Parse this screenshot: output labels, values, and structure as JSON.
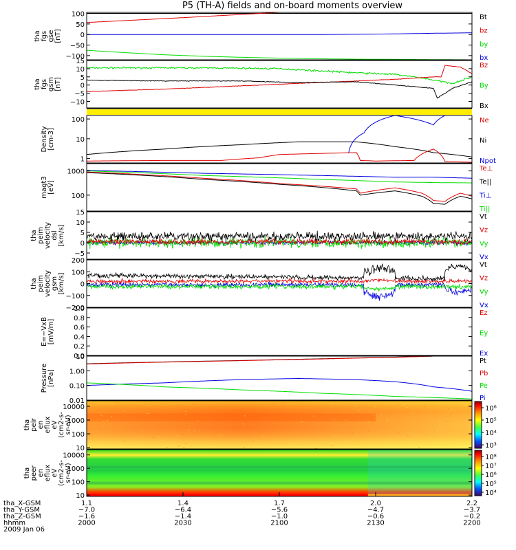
{
  "title": "P5 (TH-A) fields and on-board moments overview",
  "colors": {
    "black": "#000000",
    "red": "#e00000",
    "green": "#00dd00",
    "blue": "#0000dd",
    "yellow": "#ffee00"
  },
  "chart_data": [
    {
      "type": "line",
      "id": "fgs_gse",
      "ylabel": [
        "tha",
        "fgs",
        "gse",
        "[nT]"
      ],
      "ylim": [
        -120,
        105
      ],
      "yticks": [
        100,
        50,
        0,
        -50,
        -100
      ],
      "ticklabels": [
        "100",
        "50",
        "0",
        "−50",
        "−100"
      ],
      "series": [
        {
          "name": "Bt",
          "color": "red-dummy",
          "x": [
            0,
            0.05,
            1
          ],
          "y": [
            0,
            0,
            0
          ]
        }
      ]
    }
  ],
  "panels": [
    {
      "id": "fgs_gse",
      "type": "line",
      "ylabel": [
        "tha",
        "fgs",
        "gse",
        "[nT]"
      ],
      "ylim": [
        -120,
        105
      ],
      "ticks": [
        100,
        50,
        0,
        -50,
        -100
      ],
      "ticklabels": [
        "100",
        "50",
        "0",
        "−50",
        "−100"
      ],
      "legend": [
        {
          "t": "Bt",
          "c": "black"
        },
        {
          "t": "bz",
          "c": "red"
        },
        {
          "t": "by",
          "c": "green"
        },
        {
          "t": "bx",
          "c": "blue"
        }
      ],
      "series": [
        {
          "c": "black",
          "x": [
            0,
            1
          ],
          "y": [
            100,
            100
          ]
        },
        {
          "c": "red",
          "x": [
            0,
            0.12,
            0.25,
            0.4,
            0.5
          ],
          "y": [
            57,
            68,
            80,
            95,
            105
          ]
        },
        {
          "c": "green",
          "x": [
            0,
            0.1,
            0.2,
            0.3,
            0.4,
            0.5,
            0.6,
            0.7,
            0.8,
            0.9,
            1
          ],
          "y": [
            -75,
            -86,
            -96,
            -103,
            -108,
            -112,
            -115,
            -117,
            -118,
            -119,
            -120
          ]
        },
        {
          "c": "blue",
          "x": [
            0,
            0.2,
            0.4,
            0.6,
            0.7,
            0.8,
            0.9,
            1
          ],
          "y": [
            0,
            0,
            0,
            0,
            1,
            3,
            6,
            8
          ]
        }
      ]
    },
    {
      "id": "fgs_gsm",
      "type": "line",
      "ylabel": [
        "tha",
        "fgs",
        "gsm",
        "[nT]"
      ],
      "ylim": [
        -14,
        15
      ],
      "ticks": [
        15,
        10,
        5,
        0,
        -5,
        -10
      ],
      "ticklabels": [
        "15",
        "10",
        "5",
        "0",
        "−5",
        "−10"
      ],
      "legend": [
        {
          "t": "Bz",
          "c": "red"
        },
        {
          "t": "By",
          "c": "green"
        },
        {
          "t": "Bx",
          "c": "black"
        }
      ],
      "noisy": true,
      "series": [
        {
          "c": "green",
          "n": 0.8,
          "x": [
            0,
            0.3,
            0.5,
            0.7,
            0.8,
            0.88,
            0.9,
            0.95,
            1
          ],
          "y": [
            10.5,
            10.5,
            10,
            7.5,
            6.5,
            4,
            3,
            1,
            5
          ]
        },
        {
          "c": "red",
          "n": 0.2,
          "x": [
            0,
            0.2,
            0.5,
            0.8,
            0.9,
            0.92,
            0.93,
            0.97,
            1
          ],
          "y": [
            -4,
            -2.5,
            0.5,
            3.5,
            5,
            5,
            12,
            11,
            7
          ]
        },
        {
          "c": "black",
          "n": 0.3,
          "x": [
            0,
            0.2,
            0.4,
            0.55,
            0.7,
            0.8,
            0.9,
            0.91,
            0.95,
            1
          ],
          "y": [
            3,
            2.5,
            2.5,
            1.5,
            2,
            0,
            -2,
            -8,
            -2,
            2
          ]
        }
      ]
    },
    {
      "id": "flag",
      "type": "flag"
    },
    {
      "id": "density",
      "type": "line",
      "scale": "log",
      "ylabel": [
        "Density",
        "[cm-3]"
      ],
      "ylim": [
        0.6,
        150
      ],
      "ticks": [
        100,
        10,
        1
      ],
      "ticklabels": [
        "100",
        "10",
        "1"
      ],
      "legend": [
        {
          "t": "Ne",
          "c": "red"
        },
        {
          "t": "Ni",
          "c": "black"
        },
        {
          "t": "Npot",
          "c": "blue"
        }
      ],
      "series": [
        {
          "c": "black",
          "x": [
            0,
            0.2,
            0.4,
            0.55,
            0.7,
            0.8,
            0.9,
            1
          ],
          "y": [
            1.6,
            3,
            5,
            7,
            7,
            4,
            2,
            1.2
          ]
        },
        {
          "c": "red",
          "x": [
            0,
            0.2,
            0.35,
            0.45,
            0.5,
            0.7,
            0.71,
            0.75,
            0.85,
            0.9,
            0.93,
            1
          ],
          "y": [
            0.75,
            0.8,
            0.8,
            1.1,
            1.6,
            2,
            0.8,
            0.75,
            0.8,
            3,
            0.7,
            0.65
          ]
        },
        {
          "c": "blue",
          "x": [
            0.68,
            0.72,
            0.8,
            0.9,
            0.93
          ],
          "y": [
            2,
            20,
            150,
            50,
            150
          ]
        }
      ]
    },
    {
      "id": "temperature",
      "type": "line",
      "scale": "log",
      "ylabel": [
        "magt3",
        "[eV]"
      ],
      "ylim": [
        22,
        2000
      ],
      "ticks": [
        1000,
        100
      ],
      "ticklabels": [
        "1000",
        "100"
      ],
      "legend": [
        {
          "t": "Te⊥",
          "c": "red"
        },
        {
          "t": "Te||",
          "c": "black"
        },
        {
          "t": "Ti⊥",
          "c": "blue"
        },
        {
          "t": "Ti||",
          "c": "green"
        }
      ],
      "series": [
        {
          "c": "blue",
          "n": 0.03,
          "x": [
            0,
            0.3,
            0.6,
            0.8,
            0.9,
            1
          ],
          "y": [
            1050,
            800,
            650,
            550,
            550,
            500
          ]
        },
        {
          "c": "green",
          "n": 0.03,
          "x": [
            0,
            0.3,
            0.6,
            0.8,
            0.9,
            1
          ],
          "y": [
            1000,
            650,
            450,
            350,
            330,
            320
          ]
        },
        {
          "c": "red",
          "x": [
            0,
            0.3,
            0.5,
            0.7,
            0.71,
            0.8,
            0.87,
            0.9,
            0.93,
            0.97,
            1
          ],
          "y": [
            900,
            500,
            300,
            180,
            120,
            200,
            120,
            60,
            55,
            120,
            90
          ]
        },
        {
          "c": "black",
          "x": [
            0,
            0.3,
            0.5,
            0.7,
            0.71,
            0.8,
            0.87,
            0.9,
            0.93,
            0.97,
            1
          ],
          "y": [
            850,
            450,
            280,
            150,
            100,
            150,
            90,
            45,
            42,
            90,
            70
          ]
        }
      ]
    },
    {
      "id": "peim_velocity_dsl",
      "type": "noise",
      "ylabel": [
        "tha",
        "peim",
        "velocity",
        "dsl",
        "[km/s]"
      ],
      "ylim": [
        -8,
        15
      ],
      "ticks": [
        15,
        10,
        5,
        0,
        -5
      ],
      "ticklabels": [
        "15",
        "10",
        "5",
        "0",
        "−5"
      ],
      "legend": [
        {
          "t": "Vt",
          "c": "black"
        },
        {
          "t": "Vz",
          "c": "red"
        },
        {
          "t": "Vy",
          "c": "green"
        },
        {
          "t": "Vx",
          "c": "blue"
        }
      ],
      "series": [
        {
          "c": "blue",
          "base": 0,
          "amp": 1.5
        },
        {
          "c": "green",
          "base": 0,
          "amp": 3.5
        },
        {
          "c": "red",
          "base": 0.5,
          "amp": 2
        },
        {
          "c": "black",
          "base": 3,
          "amp": 3
        }
      ]
    },
    {
      "id": "peim_velocity_gsm",
      "type": "noise",
      "ylabel": [
        "tha",
        "peim",
        "velocity",
        "gsm",
        "[km/s]"
      ],
      "ylim": [
        -200,
        200
      ],
      "ticks": [
        200,
        100,
        0,
        -100,
        -200
      ],
      "ticklabels": [
        "200",
        "100",
        "0",
        "−100",
        "−200"
      ],
      "legend": [
        {
          "t": "Vt",
          "c": "black"
        },
        {
          "t": "Vz",
          "c": "red"
        },
        {
          "t": "Vy",
          "c": "green"
        },
        {
          "t": "Vx",
          "c": "blue"
        }
      ],
      "series": [
        {
          "c": "blue",
          "base": -10,
          "amp": 30,
          "burst": [
            0.72,
            0.8,
            -100,
            60
          ],
          "burst2": [
            0.93,
            1,
            -60,
            40
          ]
        },
        {
          "c": "green",
          "base": -25,
          "amp": 30,
          "burst": [
            0.72,
            0.8,
            -20,
            20
          ]
        },
        {
          "c": "red",
          "base": 20,
          "amp": 25,
          "burst": [
            0.72,
            0.8,
            10,
            20
          ]
        },
        {
          "c": "black",
          "base": 70,
          "amp": 30,
          "trend": -30,
          "burst": [
            0.72,
            0.8,
            60,
            60
          ],
          "burst2": [
            0.93,
            1,
            80,
            40
          ]
        }
      ]
    },
    {
      "id": "efield",
      "type": "empty",
      "ylabel": [
        "E=−VxB",
        "[mV/m]"
      ],
      "ylim": [
        0,
        1
      ],
      "ticks": [
        1.0,
        0.8,
        0.6,
        0.4,
        0.2,
        0.0
      ],
      "ticklabels": [
        "1.0",
        "0.8",
        "0.6",
        "0.4",
        "0.2",
        "0.0"
      ],
      "legend": [
        {
          "t": "Ez",
          "c": "red"
        },
        {
          "t": "Ey",
          "c": "green"
        },
        {
          "t": "Ex",
          "c": "blue"
        }
      ]
    },
    {
      "id": "pressure",
      "type": "line",
      "scale": "log",
      "ylabel": [
        "Pressure",
        "[nPa]"
      ],
      "ylim": [
        0.01,
        10
      ],
      "ticks": [
        10,
        1,
        0.1,
        0.01
      ],
      "ticklabels": [
        "10",
        "1.00",
        "0.10",
        "0.01"
      ],
      "legend": [
        {
          "t": "Pt",
          "c": "black"
        },
        {
          "t": "Pb",
          "c": "red"
        },
        {
          "t": "Pe",
          "c": "green"
        },
        {
          "t": "Pi",
          "c": "blue"
        }
      ],
      "series": [
        {
          "c": "black",
          "x": [
            0,
            0.2,
            0.4,
            0.6,
            0.8,
            0.9
          ],
          "y": [
            3,
            4,
            5,
            6.5,
            8.5,
            10
          ]
        },
        {
          "c": "red",
          "x": [
            0,
            0.2,
            0.4,
            0.6,
            0.8,
            0.9
          ],
          "y": [
            2.9,
            3.9,
            4.9,
            6.3,
            8.3,
            10
          ]
        },
        {
          "c": "blue",
          "x": [
            0,
            0.2,
            0.4,
            0.55,
            0.7,
            0.8,
            0.9,
            1
          ],
          "y": [
            0.1,
            0.15,
            0.25,
            0.3,
            0.25,
            0.18,
            0.08,
            0.04
          ]
        },
        {
          "c": "green",
          "x": [
            0,
            0.2,
            0.4,
            0.6,
            0.8,
            1
          ],
          "y": [
            0.15,
            0.08,
            0.05,
            0.03,
            0.018,
            0.012
          ]
        }
      ]
    },
    {
      "id": "peir_en_eflux",
      "type": "spectrogram",
      "scale": "log",
      "ylabel": [
        "tha",
        "peir",
        "en",
        "eflux",
        "eV",
        "(cm2-s-",
        "sr-eV)"
      ],
      "ylim": [
        8,
        25000
      ],
      "ticks": [
        10000,
        1000,
        100,
        10
      ],
      "ticklabels": [
        "10000",
        "1000",
        "100",
        "10"
      ],
      "cbar_ticks": [
        "10⁶",
        "10⁵",
        "10⁴",
        "10³"
      ],
      "cbar_label_positions_frac": [
        0.12,
        0.38,
        0.62,
        0.86
      ]
    },
    {
      "id": "peer_en_eflux",
      "type": "spectrogram2",
      "scale": "log",
      "ylabel": [
        "tha",
        "peer",
        "en",
        "eflux",
        "eV",
        "(cm2-s-",
        "sr-eV)"
      ],
      "ylim": [
        8,
        25000
      ],
      "ticks": [
        10000,
        1000,
        100,
        10
      ],
      "ticklabels": [
        "10000",
        "1000",
        "100",
        "10"
      ],
      "cbar_ticks": [
        "10⁸",
        "10⁷",
        "10⁶",
        "10⁵",
        "10⁴"
      ]
    }
  ],
  "xaxis": {
    "row_labels": [
      "tha_X-GSM",
      "tha_Y-GSM",
      "tha_Z-GSM",
      "hhmm",
      "2009 Jan 06"
    ],
    "columns": [
      {
        "x": 0.0,
        "values": [
          "1.1",
          "−7.0",
          "−1.6",
          "2000"
        ]
      },
      {
        "x": 0.25,
        "values": [
          "1.4",
          "−6.4",
          "−1.4",
          "2030"
        ]
      },
      {
        "x": 0.5,
        "values": [
          "1.7",
          "−5.6",
          "−1.0",
          "2100"
        ]
      },
      {
        "x": 0.75,
        "values": [
          "2.0",
          "−4.7",
          "−0.6",
          "2130"
        ]
      },
      {
        "x": 1.0,
        "values": [
          "2.2",
          "−3.7",
          "−0.2",
          "2200"
        ]
      }
    ]
  }
}
